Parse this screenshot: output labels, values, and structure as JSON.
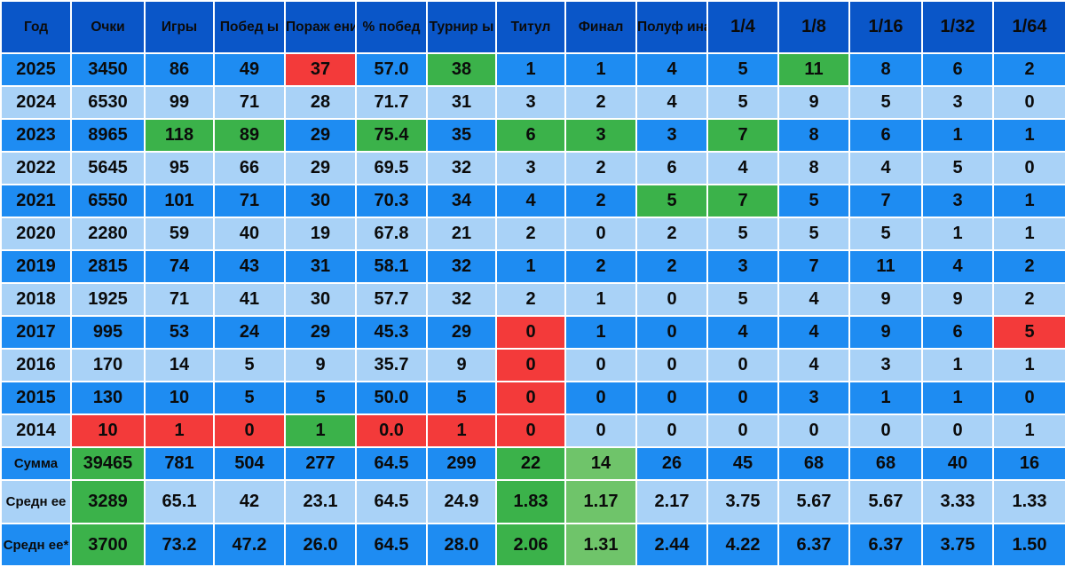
{
  "columns": [
    "Год",
    "Очки",
    "Игры",
    "Побед ы",
    "Пораж ения",
    "% побед",
    "Турнир ы",
    "Титул",
    "Финал",
    "Полуф инал",
    "1/4",
    "1/8",
    "1/16",
    "1/32",
    "1/64"
  ],
  "rows": [
    [
      "2025",
      "3450",
      "86",
      "49",
      "37",
      "57.0",
      "38",
      "1",
      "1",
      "4",
      "5",
      "11",
      "8",
      "6",
      "2"
    ],
    [
      "2024",
      "6530",
      "99",
      "71",
      "28",
      "71.7",
      "31",
      "3",
      "2",
      "4",
      "5",
      "9",
      "5",
      "3",
      "0"
    ],
    [
      "2023",
      "8965",
      "118",
      "89",
      "29",
      "75.4",
      "35",
      "6",
      "3",
      "3",
      "7",
      "8",
      "6",
      "1",
      "1"
    ],
    [
      "2022",
      "5645",
      "95",
      "66",
      "29",
      "69.5",
      "32",
      "3",
      "2",
      "6",
      "4",
      "8",
      "4",
      "5",
      "0"
    ],
    [
      "2021",
      "6550",
      "101",
      "71",
      "30",
      "70.3",
      "34",
      "4",
      "2",
      "5",
      "7",
      "5",
      "7",
      "3",
      "1"
    ],
    [
      "2020",
      "2280",
      "59",
      "40",
      "19",
      "67.8",
      "21",
      "2",
      "0",
      "2",
      "5",
      "5",
      "5",
      "1",
      "1"
    ],
    [
      "2019",
      "2815",
      "74",
      "43",
      "31",
      "58.1",
      "32",
      "1",
      "2",
      "2",
      "3",
      "7",
      "11",
      "4",
      "2"
    ],
    [
      "2018",
      "1925",
      "71",
      "41",
      "30",
      "57.7",
      "32",
      "2",
      "1",
      "0",
      "5",
      "4",
      "9",
      "9",
      "2"
    ],
    [
      "2017",
      "995",
      "53",
      "24",
      "29",
      "45.3",
      "29",
      "0",
      "1",
      "0",
      "4",
      "4",
      "9",
      "6",
      "5"
    ],
    [
      "2016",
      "170",
      "14",
      "5",
      "9",
      "35.7",
      "9",
      "0",
      "0",
      "0",
      "0",
      "4",
      "3",
      "1",
      "1"
    ],
    [
      "2015",
      "130",
      "10",
      "5",
      "5",
      "50.0",
      "5",
      "0",
      "0",
      "0",
      "0",
      "3",
      "1",
      "1",
      "0"
    ],
    [
      "2014",
      "10",
      "1",
      "0",
      "1",
      "0.0",
      "1",
      "0",
      "0",
      "0",
      "0",
      "0",
      "0",
      "0",
      "1"
    ]
  ],
  "footer_rows": [
    [
      "Сумма",
      "39465",
      "781",
      "504",
      "277",
      "64.5",
      "299",
      "22",
      "14",
      "26",
      "45",
      "68",
      "68",
      "40",
      "16"
    ],
    [
      "Средн ее",
      "3289",
      "65.1",
      "42",
      "23.1",
      "64.5",
      "24.9",
      "1.83",
      "1.17",
      "2.17",
      "3.75",
      "5.67",
      "5.67",
      "3.33",
      "1.33"
    ],
    [
      "Средн ее*",
      "3700",
      "73.2",
      "47.2",
      "26.0",
      "64.5",
      "28.0",
      "2.06",
      "1.31",
      "2.44",
      "4.22",
      "6.37",
      "6.37",
      "3.75",
      "1.50"
    ]
  ],
  "colors": {
    "header_bg": "#0a56c8",
    "row_dark": "#1e8cf2",
    "row_light": "#a9d2f7",
    "best_green": "#3bb24a",
    "light_green": "#6fc46a",
    "worst_red": "#f33a3a"
  }
}
